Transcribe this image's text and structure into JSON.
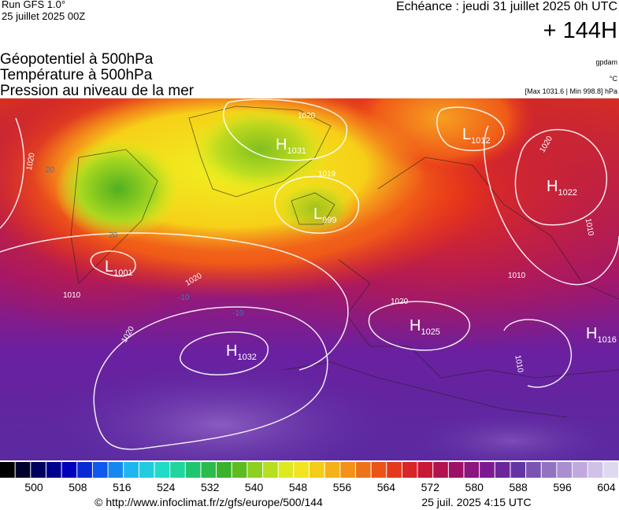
{
  "header": {
    "run": "Run GFS 1.0°",
    "run_date": "25 juillet 2025 00Z",
    "valid": "Echéance : jeudi 31 juillet 2025 0h UTC",
    "lead": "+ 144H"
  },
  "fields": {
    "geopotential": "Géopotentiel à 500hPa",
    "temperature": "Température à 500hPa",
    "pressure": "Pression au niveau de la mer"
  },
  "units": {
    "geopotential": "gpdam",
    "temperature": "°C",
    "pressure_range": "[Max 1031.6 | Min 998.8] hPa"
  },
  "centers": [
    {
      "kind": "H",
      "value": "1031"
    },
    {
      "kind": "L",
      "value": "1012"
    },
    {
      "kind": "H",
      "value": "1022"
    },
    {
      "kind": "L",
      "value": "999"
    },
    {
      "kind": "L",
      "value": "1001"
    },
    {
      "kind": "H",
      "value": "1032"
    },
    {
      "kind": "H",
      "value": "1025"
    },
    {
      "kind": "H",
      "value": "1016"
    }
  ],
  "contour_labels": [
    "1020",
    "1020",
    "1019",
    "1020",
    "1010",
    "1010",
    "1020",
    "1010",
    "1020",
    "1020",
    "1010",
    "20",
    "20",
    "-10",
    "-10"
  ],
  "colorbar": {
    "ticks": [
      500,
      508,
      516,
      524,
      532,
      540,
      548,
      556,
      564,
      572,
      580,
      588,
      596,
      604
    ]
  },
  "footer": {
    "source": "© http://www.infoclimat.fr/z/gfs/europe/500/144",
    "generated": "25 juil. 2025  4:15 UTC"
  }
}
